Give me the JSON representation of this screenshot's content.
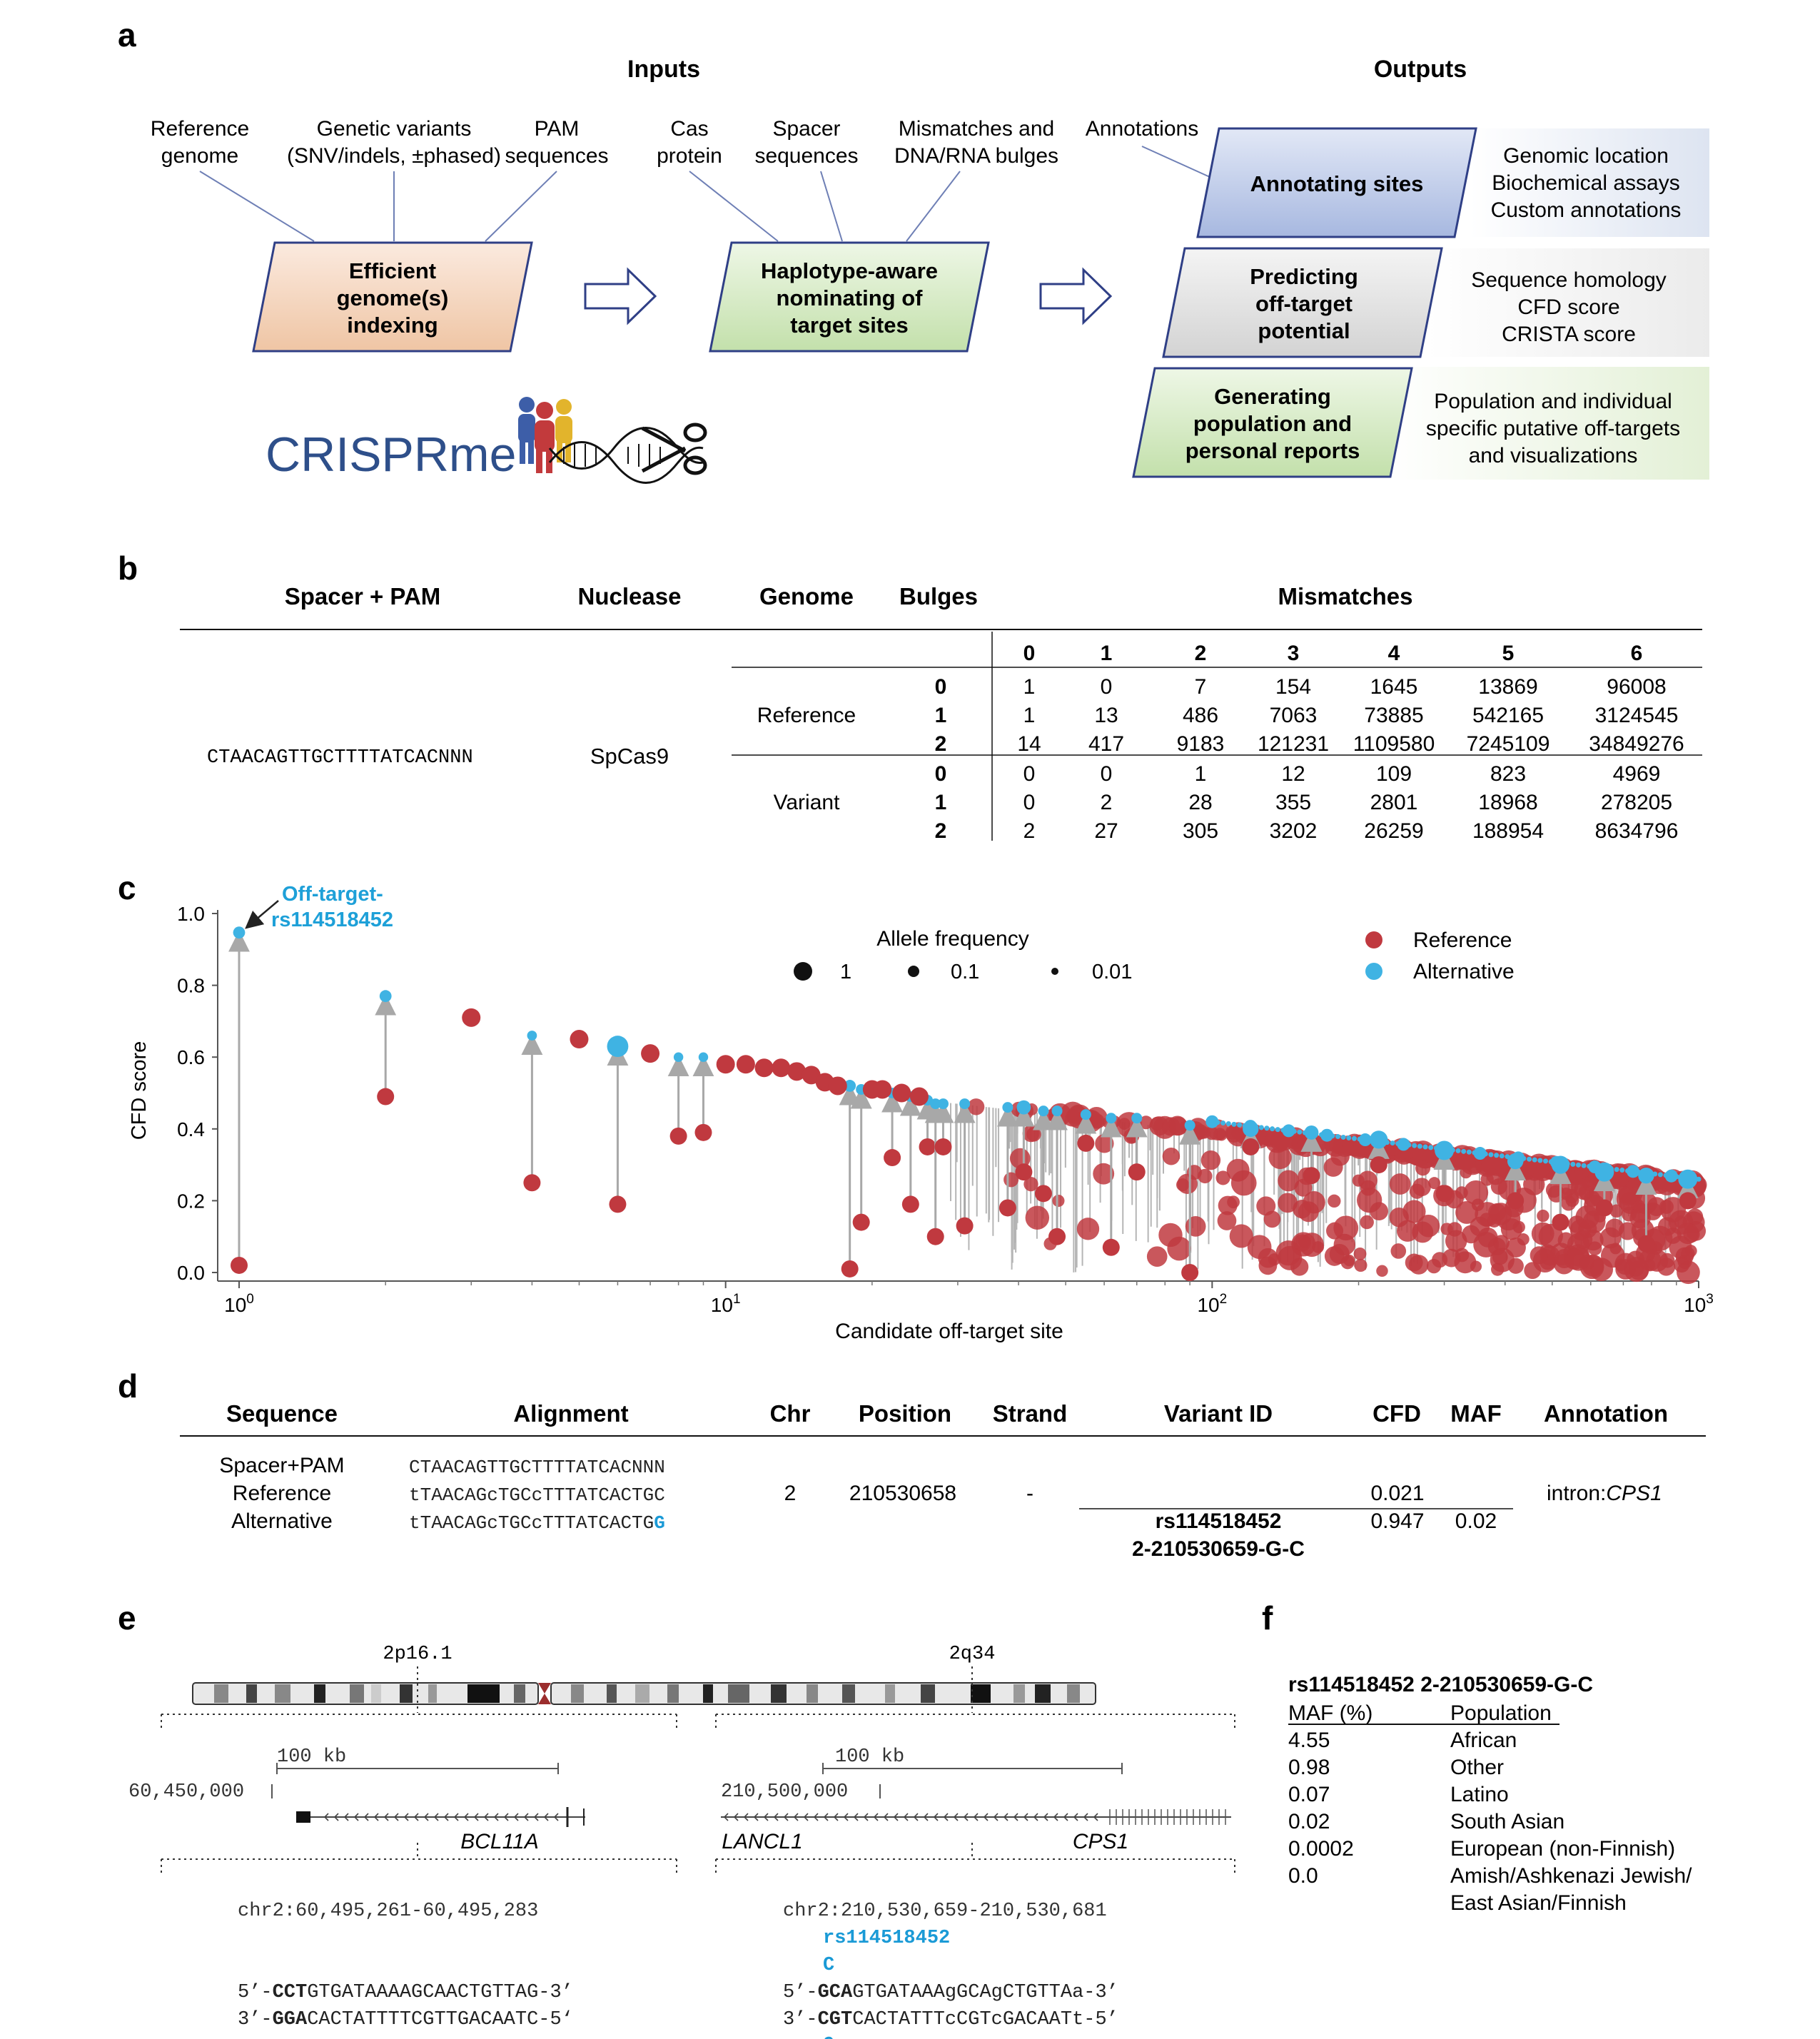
{
  "panel_letters": {
    "a": "a",
    "b": "b",
    "c": "c",
    "d": "d",
    "e": "e",
    "f": "f"
  },
  "panel_a": {
    "inputs_header": "Inputs",
    "outputs_header": "Outputs",
    "input_labels": {
      "ref_genome": [
        "Reference",
        "genome"
      ],
      "variants": [
        "Genetic variants",
        "(SNV/indels, ±phased)"
      ],
      "pam": [
        "PAM",
        "sequences"
      ],
      "cas": [
        "Cas",
        "protein"
      ],
      "spacer": [
        "Spacer",
        "sequences"
      ],
      "mismatch": [
        "Mismatches and",
        "DNA/RNA bulges"
      ],
      "annotations": "Annotations"
    },
    "box_indexing": [
      "Efficient",
      "genome(s)",
      "indexing"
    ],
    "box_nominating": [
      "Haplotype-aware",
      "nominating of",
      "target sites"
    ],
    "box_annotating": "Annotating sites",
    "box_predicting": [
      "Predicting",
      "off-target",
      "potential"
    ],
    "box_generating": [
      "Generating",
      "population and",
      "personal reports"
    ],
    "desc_annotating": [
      "Genomic location",
      "Biochemical assays",
      "Custom annotations"
    ],
    "desc_predicting": [
      "Sequence homology",
      "CFD score",
      "CRISTA score"
    ],
    "desc_generating": [
      "Population and individual",
      "specific putative off-targets",
      "and visualizations"
    ],
    "logo_text": "CRISPRme",
    "colors": {
      "orange": "#f4d6bd",
      "green": "#d7ebc6",
      "blue": "#c3d0ec",
      "grey": "#e3e3e3",
      "border": "#2f3f86",
      "logo": "#2e4f8a"
    }
  },
  "panel_b": {
    "headers": {
      "spacer": "Spacer + PAM",
      "nuclease": "Nuclease",
      "genome": "Genome",
      "bulges": "Bulges",
      "mismatches": "Mismatches"
    },
    "spacer_value": "CTAACAGTTGCTTTTATCACNNN",
    "nuclease_value": "SpCas9",
    "mismatch_cols": [
      "0",
      "1",
      "2",
      "3",
      "4",
      "5",
      "6"
    ],
    "groups": [
      {
        "genome": "Reference",
        "rows": [
          {
            "bulge": "0",
            "values": [
              "1",
              "0",
              "7",
              "154",
              "1645",
              "13869",
              "96008"
            ]
          },
          {
            "bulge": "1",
            "values": [
              "1",
              "13",
              "486",
              "7063",
              "73885",
              "542165",
              "3124545"
            ]
          },
          {
            "bulge": "2",
            "values": [
              "14",
              "417",
              "9183",
              "121231",
              "1109580",
              "7245109",
              "34849276"
            ]
          }
        ]
      },
      {
        "genome": "Variant",
        "rows": [
          {
            "bulge": "0",
            "values": [
              "0",
              "0",
              "1",
              "12",
              "109",
              "823",
              "4969"
            ]
          },
          {
            "bulge": "1",
            "values": [
              "0",
              "2",
              "28",
              "355",
              "2801",
              "18968",
              "278205"
            ]
          },
          {
            "bulge": "2",
            "values": [
              "2",
              "27",
              "305",
              "3202",
              "26259",
              "188954",
              "8634796"
            ]
          }
        ]
      }
    ]
  },
  "chart_data": {
    "type": "scatter",
    "ylabel": "CFD score",
    "xlabel": "Candidate off-target site",
    "x_scale": "log",
    "xlim": [
      1,
      1000
    ],
    "ylim": [
      0,
      1
    ],
    "y_ticks": [
      "0.0",
      "0.2",
      "0.4",
      "0.6",
      "0.8",
      "1.0"
    ],
    "x_ticks": [
      {
        "base": "10",
        "exp": "0"
      },
      {
        "base": "10",
        "exp": "1"
      },
      {
        "base": "10",
        "exp": "2"
      },
      {
        "base": "10",
        "exp": "3"
      }
    ],
    "annotation": [
      "Off-target-",
      "rs114518452"
    ],
    "legend_size_title": "Allele frequency",
    "legend_sizes": [
      {
        "label": "1",
        "af": 1
      },
      {
        "label": "0.1",
        "af": 0.1
      },
      {
        "label": "0.01",
        "af": 0.01
      }
    ],
    "legend_colors": [
      {
        "label": "Reference",
        "color": "#c0393f"
      },
      {
        "label": "Alternative",
        "color": "#3fb3e3"
      }
    ],
    "pairs": [
      {
        "x": 1,
        "ref": 0.02,
        "alt": 0.947,
        "af": 0.02
      },
      {
        "x": 2,
        "ref": 0.49,
        "alt": 0.77,
        "af": 0.02
      },
      {
        "x": 4,
        "ref": 0.25,
        "alt": 0.66,
        "af": 0.005
      },
      {
        "x": 6,
        "ref": 0.19,
        "alt": 0.63,
        "af": 0.6
      },
      {
        "x": 8,
        "ref": 0.38,
        "alt": 0.6,
        "af": 0.004
      },
      {
        "x": 9,
        "ref": 0.39,
        "alt": 0.6,
        "af": 0.004
      },
      {
        "x": 18,
        "ref": 0.01,
        "alt": 0.52,
        "af": 0.02
      },
      {
        "x": 19,
        "ref": 0.14,
        "alt": 0.51,
        "af": 0.01
      },
      {
        "x": 22,
        "ref": 0.32,
        "alt": 0.5,
        "af": 0.01
      },
      {
        "x": 24,
        "ref": 0.19,
        "alt": 0.49,
        "af": 0.01
      },
      {
        "x": 26,
        "ref": 0.35,
        "alt": 0.48,
        "af": 0.01
      },
      {
        "x": 27,
        "ref": 0.1,
        "alt": 0.47,
        "af": 0.01
      },
      {
        "x": 28,
        "ref": 0.35,
        "alt": 0.47,
        "af": 0.01
      },
      {
        "x": 31,
        "ref": 0.13,
        "alt": 0.47,
        "af": 0.01
      },
      {
        "x": 38,
        "ref": 0.18,
        "alt": 0.46,
        "af": 0.01
      },
      {
        "x": 41,
        "ref": 0.28,
        "alt": 0.46,
        "af": 0.05
      },
      {
        "x": 45,
        "ref": 0.22,
        "alt": 0.45,
        "af": 0.01
      },
      {
        "x": 48,
        "ref": 0.1,
        "alt": 0.45,
        "af": 0.01
      },
      {
        "x": 55,
        "ref": 0.36,
        "alt": 0.44,
        "af": 0.01
      },
      {
        "x": 62,
        "ref": 0.07,
        "alt": 0.43,
        "af": 0.01
      },
      {
        "x": 70,
        "ref": 0.28,
        "alt": 0.43,
        "af": 0.01
      },
      {
        "x": 90,
        "ref": 0.0,
        "alt": 0.41,
        "af": 0.01
      },
      {
        "x": 120,
        "ref": 0.35,
        "alt": 0.4,
        "af": 0.1
      },
      {
        "x": 160,
        "ref": 0.27,
        "alt": 0.39,
        "af": 0.05
      },
      {
        "x": 220,
        "ref": 0.3,
        "alt": 0.37,
        "af": 0.2
      },
      {
        "x": 300,
        "ref": 0.22,
        "alt": 0.34,
        "af": 0.3
      },
      {
        "x": 420,
        "ref": 0.2,
        "alt": 0.31,
        "af": 0.1
      },
      {
        "x": 520,
        "ref": 0.14,
        "alt": 0.3,
        "af": 0.2
      },
      {
        "x": 640,
        "ref": 0.18,
        "alt": 0.28,
        "af": 0.3
      },
      {
        "x": 780,
        "ref": 0.08,
        "alt": 0.27,
        "af": 0.1
      },
      {
        "x": 950,
        "ref": 0.2,
        "alt": 0.26,
        "af": 0.3
      }
    ],
    "reference_only": [
      {
        "x": 3,
        "y": 0.71,
        "af": 0.6
      },
      {
        "x": 5,
        "y": 0.65,
        "af": 0.6
      },
      {
        "x": 7,
        "y": 0.61,
        "af": 0.6
      },
      {
        "x": 10,
        "y": 0.58,
        "af": 0.6
      },
      {
        "x": 11,
        "y": 0.58,
        "af": 0.6
      },
      {
        "x": 12,
        "y": 0.57,
        "af": 0.6
      },
      {
        "x": 13,
        "y": 0.57,
        "af": 0.6
      },
      {
        "x": 14,
        "y": 0.56,
        "af": 0.6
      },
      {
        "x": 15,
        "y": 0.55,
        "af": 0.6
      },
      {
        "x": 16,
        "y": 0.53,
        "af": 0.6
      },
      {
        "x": 17,
        "y": 0.52,
        "af": 0.6
      },
      {
        "x": 20,
        "y": 0.51,
        "af": 0.6
      },
      {
        "x": 21,
        "y": 0.51,
        "af": 0.6
      },
      {
        "x": 23,
        "y": 0.5,
        "af": 0.6
      },
      {
        "x": 25,
        "y": 0.49,
        "af": 0.6
      }
    ],
    "reference_cloud": {
      "x_from": 29,
      "x_to": 1000,
      "top_start": 0.48,
      "top_end": 0.25
    },
    "alt_line": {
      "x_from": 100,
      "x_to": 1000,
      "y_start": 0.42,
      "y_end": 0.26
    }
  },
  "panel_d": {
    "headers": {
      "sequence": "Sequence",
      "alignment": "Alignment",
      "chr": "Chr",
      "position": "Position",
      "strand": "Strand",
      "variant_id": "Variant ID",
      "cfd": "CFD",
      "maf": "MAF",
      "annotation": "Annotation"
    },
    "row_labels": [
      "Spacer+PAM",
      "Reference",
      "Alternative"
    ],
    "alignments": [
      [
        {
          "t": "CTAACAGTTGCTTTTATCACNNN",
          "c": "n"
        }
      ],
      [
        {
          "t": "tTAACAGcTGCcTTTATCACTGC",
          "c": "n"
        }
      ],
      [
        {
          "t": "tTAACAGcTGCcTTTATCACTG",
          "c": "n"
        },
        {
          "t": "G",
          "c": "hl"
        }
      ]
    ],
    "chr": "2",
    "position": "210530658",
    "strand": "-",
    "variant_id": [
      "rs114518452",
      "2-210530659-G-C"
    ],
    "cfd_ref": "0.021",
    "cfd_alt": "0.947",
    "maf": "0.02",
    "annotation_prefix": "intron:",
    "annotation_gene": "CPS1",
    "highlight_color": "#1a9ad6"
  },
  "panel_e": {
    "band_left": "2p16.1",
    "band_right": "2q34",
    "scale_label": "100 kb",
    "left_coord": "60,450,000",
    "right_coord": "210,500,000",
    "gene_bcl11a": "BCL11A",
    "gene_lancl1": "LANCL1",
    "gene_cps1": "CPS1",
    "left_region": "chr2:60,495,261-60,495,283",
    "right_region": "chr2:210,530,659-210,530,681",
    "left_seq": [
      [
        {
          "t": "5’-",
          "c": "n"
        },
        {
          "t": "CCT",
          "c": "b"
        },
        {
          "t": "GTGATAAAAGCAACTGTTAG-3’",
          "c": "n"
        }
      ],
      [
        {
          "t": "3’-",
          "c": "n"
        },
        {
          "t": "GGA",
          "c": "b"
        },
        {
          "t": "CACTATTTTCGTTGACAATC-5‘",
          "c": "n"
        }
      ]
    ],
    "right_snp_id": "rs114518452",
    "right_snp_top": "C",
    "right_snp_bottom": "G",
    "right_seq": [
      [
        {
          "t": "5’-",
          "c": "n"
        },
        {
          "t": "GCA",
          "c": "b"
        },
        {
          "t": "GTGATAAAgGCAgCTGTTAa-3’",
          "c": "n"
        }
      ],
      [
        {
          "t": "3’-",
          "c": "n"
        },
        {
          "t": "CGT",
          "c": "b"
        },
        {
          "t": "CACTATTTcCGTcGACAATt-5’",
          "c": "n"
        }
      ]
    ]
  },
  "panel_f": {
    "title": "rs114518452 2-210530659-G-C",
    "col_maf": "MAF (%)",
    "col_pop": "Population",
    "rows": [
      {
        "maf": "4.55",
        "pop": [
          "African"
        ]
      },
      {
        "maf": "0.98",
        "pop": [
          "Other"
        ]
      },
      {
        "maf": "0.07",
        "pop": [
          "Latino"
        ]
      },
      {
        "maf": "0.02",
        "pop": [
          "South Asian"
        ]
      },
      {
        "maf": "0.0002",
        "pop": [
          "European (non-Finnish)"
        ]
      },
      {
        "maf": "0.0",
        "pop": [
          "Amish/Ashkenazi Jewish/",
          "East Asian/Finnish"
        ]
      }
    ]
  }
}
